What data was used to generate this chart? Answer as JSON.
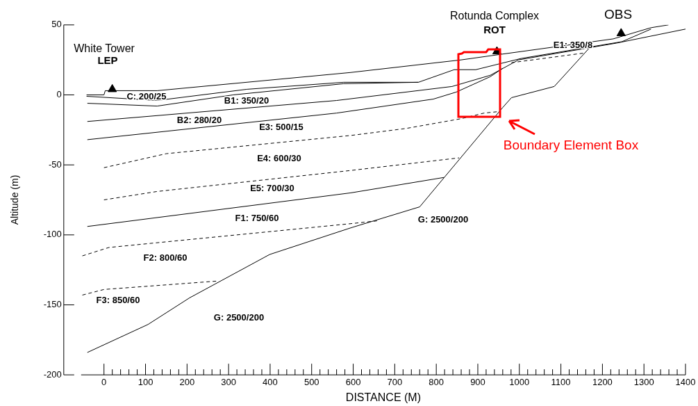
{
  "chart_data": {
    "type": "line",
    "xlabel": "DISTANCE (M)",
    "ylabel": "Altitude (m)",
    "xlim": [
      -55,
      1400
    ],
    "ylim": [
      -200,
      50
    ],
    "xticks": [
      0,
      {
        "value": 20,
        "label": null
      },
      {
        "value": 40,
        "label": null
      },
      {
        "value": 60,
        "label": null
      },
      {
        "value": 80,
        "label": null
      },
      100,
      {
        "value": 120,
        "label": null
      },
      {
        "value": 140,
        "label": null
      },
      {
        "value": 160,
        "label": null
      },
      {
        "value": 180,
        "label": null
      },
      200,
      {
        "value": 220,
        "label": null
      },
      {
        "value": 240,
        "label": null
      },
      {
        "value": 260,
        "label": null
      },
      {
        "value": 280,
        "label": null
      },
      300,
      {
        "value": 320,
        "label": null
      },
      {
        "value": 340,
        "label": null
      },
      {
        "value": 360,
        "label": null
      },
      {
        "value": 380,
        "label": null
      },
      400,
      {
        "value": 420,
        "label": null
      },
      {
        "value": 440,
        "label": null
      },
      {
        "value": 460,
        "label": null
      },
      {
        "value": 480,
        "label": null
      },
      500,
      {
        "value": 520,
        "label": null
      },
      {
        "value": 540,
        "label": null
      },
      {
        "value": 560,
        "label": null
      },
      {
        "value": 580,
        "label": null
      },
      600,
      {
        "value": 620,
        "label": null
      },
      {
        "value": 640,
        "label": null
      },
      {
        "value": 660,
        "label": null
      },
      {
        "value": 680,
        "label": null
      },
      700,
      {
        "value": 720,
        "label": null
      },
      {
        "value": 740,
        "label": null
      },
      {
        "value": 760,
        "label": null
      },
      {
        "value": 780,
        "label": null
      },
      800,
      {
        "value": 820,
        "label": null
      },
      {
        "value": 840,
        "label": null
      },
      {
        "value": 860,
        "label": null
      },
      {
        "value": 880,
        "label": null
      },
      900,
      {
        "value": 920,
        "label": null
      },
      {
        "value": 940,
        "label": null
      },
      {
        "value": 960,
        "label": null
      },
      {
        "value": 980,
        "label": null
      },
      1000,
      {
        "value": 1020,
        "label": null
      },
      {
        "value": 1040,
        "label": null
      },
      {
        "value": 1060,
        "label": null
      },
      {
        "value": 1080,
        "label": null
      },
      1100,
      {
        "value": 1120,
        "label": null
      },
      {
        "value": 1140,
        "label": null
      },
      {
        "value": 1160,
        "label": null
      },
      {
        "value": 1180,
        "label": null
      },
      1200,
      {
        "value": 1220,
        "label": null
      },
      {
        "value": 1240,
        "label": null
      },
      {
        "value": 1260,
        "label": null
      },
      {
        "value": 1280,
        "label": null
      },
      1300,
      {
        "value": 1320,
        "label": null
      },
      {
        "value": 1340,
        "label": null
      },
      {
        "value": 1360,
        "label": null
      },
      {
        "value": 1380,
        "label": null
      },
      1400
    ],
    "yticks": [
      -200,
      -150,
      -100,
      -50,
      0,
      50
    ],
    "grid": false,
    "legend": false,
    "marker": "none",
    "series": [
      {
        "color": "#000000",
        "line_style": "solid",
        "x": [
          -42,
          0,
          3,
          128,
          594,
          860,
          956,
          1226,
          1317,
          1359
        ],
        "values": [
          0,
          0,
          3,
          3,
          16,
          25,
          29,
          40,
          48,
          50
        ]
      },
      {
        "color": "#000000",
        "line_style": "solid",
        "x": [
          -42,
          128,
          344,
          577,
          757,
          843,
          895,
          1004,
          1247,
          1317
        ],
        "values": [
          -1,
          -4,
          4,
          9,
          9,
          18,
          18,
          26,
          38,
          47
        ]
      },
      {
        "color": "#000000",
        "line_style": "solid",
        "x": [
          -40,
          128,
          311,
          577,
          757
        ],
        "values": [
          -6,
          -8,
          0,
          8,
          9
        ]
      },
      {
        "color": "#000000",
        "line_style": "solid",
        "x": [
          -40,
          560,
          838,
          930,
          998,
          1234,
          1400
        ],
        "values": [
          -19,
          -4,
          6,
          14,
          25,
          37,
          47
        ]
      },
      {
        "color": "#000000",
        "line_style": "solid",
        "x": [
          -40,
          560,
          793,
          848,
          930,
          960
        ],
        "values": [
          -32,
          -13,
          -3,
          2,
          13,
          19
        ]
      },
      {
        "color": "#000000",
        "line_style": "dashed",
        "x": [
          0,
          150,
          594,
          727,
          860,
          915,
          948
        ],
        "values": [
          -52,
          -42,
          -29,
          -24,
          -17,
          -13,
          -12
        ]
      },
      {
        "color": "#000000",
        "line_style": "dashed",
        "x": [
          981,
          1159
        ],
        "values": [
          23,
          30
        ]
      },
      {
        "color": "#000000",
        "line_style": "dashed",
        "x": [
          0,
          128,
          594,
          855
        ],
        "values": [
          -75,
          -69,
          -54,
          -45
        ]
      },
      {
        "color": "#000000",
        "line_style": "solid",
        "x": [
          -40,
          594,
          818
        ],
        "values": [
          -94,
          -70,
          -59
        ]
      },
      {
        "color": "#000000",
        "line_style": "dashed",
        "x": [
          -52,
          12,
          594,
          657
        ],
        "values": [
          -115,
          -109,
          -92,
          -90
        ]
      },
      {
        "color": "#000000",
        "line_style": "dashed",
        "x": [
          -52,
          0,
          273
        ],
        "values": [
          -143,
          -139,
          -133
        ]
      },
      {
        "color": "#000000",
        "line_style": "solid",
        "x": [
          -40,
          106,
          206,
          399,
          594,
          760,
          960,
          981,
          1084,
          1167
        ],
        "values": [
          -184,
          -164,
          -145,
          -114,
          -95,
          -80,
          -9,
          -2,
          6,
          33
        ]
      },
      {
        "type": "scatter",
        "color": "#000000",
        "marker": "triangle",
        "x": [
          20,
          946,
          1245
        ],
        "values": [
          4,
          31,
          44
        ]
      }
    ],
    "annotations": [
      "White Tower",
      "LEP",
      "Rotunda Complex",
      "ROT",
      "OBS",
      "C: 200/25",
      "B1: 350/20",
      "B2: 280/20",
      "E3: 500/15",
      "E4: 600/30",
      "E5: 700/30",
      "F1: 750/60",
      "F2: 800/60",
      "F3: 850/60",
      "G: 2500/200",
      "G: 2500/200",
      "E1: 350/8",
      "Boundary Element Box"
    ]
  }
}
